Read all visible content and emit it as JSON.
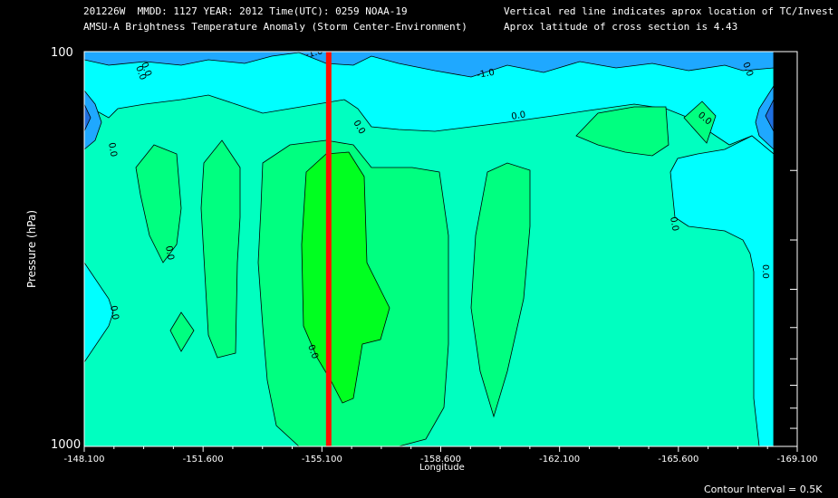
{
  "header": {
    "line1": "201226W  MMDD: 1127 YEAR: 2012 Time(UTC): 0259 NOAA-19",
    "line2": "AMSU-A Brightness Temperature Anomaly (Storm Center-Environment)",
    "note1": "Vertical red line indicates aprox location of TC/Invest",
    "note2": "Aprox latitude of cross section is 4.43"
  },
  "footer": {
    "contour_interval": "Contour Interval = 0.5K"
  },
  "chart_data": {
    "type": "heatmap",
    "xlabel": "Longitude",
    "ylabel": "Pressure (hPa)",
    "xlim": [
      -148.1,
      -169.1
    ],
    "ylim": [
      1000,
      100
    ],
    "y_scale": "log",
    "x_tick_labels": [
      "-148.100",
      "-151.600",
      "-155.100",
      "-158.600",
      "-162.100",
      "-165.600",
      "-169.100"
    ],
    "x_ticks": [
      -148.1,
      -151.6,
      -155.1,
      -158.6,
      -162.1,
      -165.6,
      -169.1
    ],
    "y_tick_labels": [
      "100",
      "1000"
    ],
    "y_ticks": [
      100,
      1000
    ],
    "tc_longitude": -155.3,
    "contour_interval": 0.5,
    "contour_labels": [
      "-1.0",
      "-1.0",
      "0.0",
      "0.0",
      "0.0",
      "0.0",
      "0.0",
      "0.0",
      "0.0",
      "0.0",
      "0.0",
      "0.0",
      "0.0",
      "0.0"
    ],
    "colors": {
      "level_-1.5": "#1f6fe0",
      "level_-1.0": "#1fa8ff",
      "level_-0.5": "#00ffff",
      "level_0.0": "#00ffc0",
      "level_0.5": "#00ff80",
      "level_1.0": "#00ff20",
      "tc_line": "#ff1000"
    }
  }
}
